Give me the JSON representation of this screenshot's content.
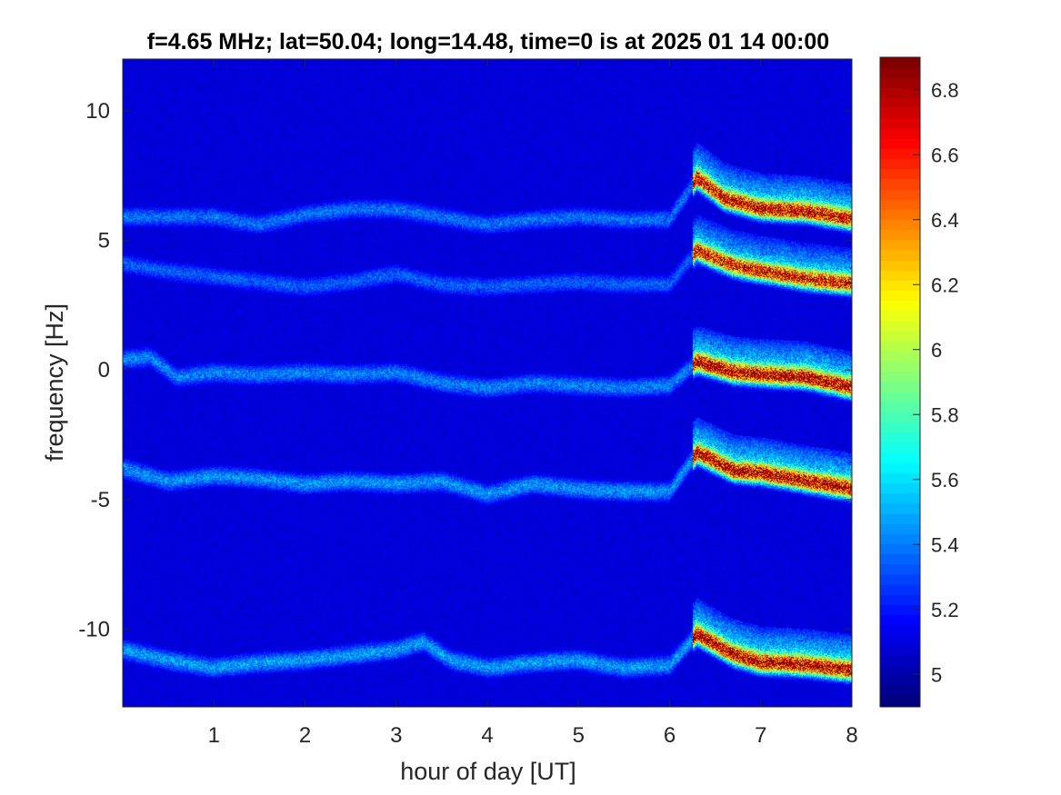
{
  "chart_data": {
    "type": "heatmap",
    "title": "f=4.65 MHz;  lat=50.04; long=14.48, time=0 is at 2025 01 14 00:00",
    "xlabel": "hour of day [UT]",
    "ylabel": "frequency [Hz]",
    "xlim": [
      0,
      8
    ],
    "ylim": [
      -13,
      12
    ],
    "x_ticks": [
      1,
      2,
      3,
      4,
      5,
      6,
      7,
      8
    ],
    "y_ticks": [
      -10,
      -5,
      0,
      5,
      10
    ],
    "y_tick_labels": [
      "-10",
      "-5",
      "0",
      "5",
      "10"
    ],
    "colorbar": {
      "colormap": "jet",
      "range": [
        4.9,
        6.9
      ],
      "ticks": [
        5,
        5.2,
        5.4,
        5.6,
        5.8,
        6,
        6.2,
        6.4,
        6.6,
        6.8
      ],
      "tick_labels": [
        "5",
        "5.2",
        "5.4",
        "5.6",
        "5.8",
        "6",
        "6.2",
        "6.4",
        "6.6",
        "6.8"
      ]
    },
    "background_color": "#00008f",
    "grid": false,
    "traces": [
      {
        "center": [
          [
            0.0,
            5.9
          ],
          [
            0.5,
            5.9
          ],
          [
            1.0,
            5.9
          ],
          [
            1.5,
            5.6
          ],
          [
            2.0,
            6.0
          ],
          [
            2.5,
            6.2
          ],
          [
            3.0,
            6.2
          ],
          [
            3.5,
            5.9
          ],
          [
            4.0,
            5.6
          ],
          [
            4.5,
            5.8
          ],
          [
            5.0,
            5.9
          ],
          [
            5.5,
            5.8
          ],
          [
            6.0,
            5.8
          ],
          [
            6.3,
            7.4
          ],
          [
            6.6,
            6.6
          ],
          [
            7.0,
            6.2
          ],
          [
            7.5,
            6.1
          ],
          [
            8.0,
            5.8
          ]
        ],
        "strength_before": 0.28,
        "strength_after": 0.92
      },
      {
        "center": [
          [
            0.0,
            4.1
          ],
          [
            0.5,
            3.8
          ],
          [
            1.0,
            3.6
          ],
          [
            1.5,
            3.4
          ],
          [
            2.0,
            3.2
          ],
          [
            2.5,
            3.4
          ],
          [
            3.0,
            3.7
          ],
          [
            3.5,
            3.3
          ],
          [
            4.0,
            3.2
          ],
          [
            4.5,
            3.3
          ],
          [
            5.0,
            3.4
          ],
          [
            5.5,
            3.3
          ],
          [
            6.0,
            3.3
          ],
          [
            6.3,
            4.6
          ],
          [
            6.7,
            4.0
          ],
          [
            7.0,
            3.8
          ],
          [
            7.5,
            3.5
          ],
          [
            8.0,
            3.3
          ]
        ],
        "strength_before": 0.26,
        "strength_after": 0.88
      },
      {
        "center": [
          [
            0.0,
            0.4
          ],
          [
            0.3,
            0.5
          ],
          [
            0.6,
            -0.3
          ],
          [
            1.0,
            -0.1
          ],
          [
            1.5,
            -0.2
          ],
          [
            2.0,
            -0.1
          ],
          [
            2.5,
            -0.2
          ],
          [
            3.0,
            -0.1
          ],
          [
            3.5,
            -0.5
          ],
          [
            4.0,
            -0.7
          ],
          [
            4.5,
            -0.5
          ],
          [
            5.0,
            -0.6
          ],
          [
            5.5,
            -0.7
          ],
          [
            6.0,
            -0.6
          ],
          [
            6.3,
            0.3
          ],
          [
            6.7,
            -0.1
          ],
          [
            7.0,
            -0.2
          ],
          [
            7.5,
            -0.3
          ],
          [
            8.0,
            -0.7
          ]
        ],
        "strength_before": 0.3,
        "strength_after": 0.95
      },
      {
        "center": [
          [
            0.0,
            -3.8
          ],
          [
            0.5,
            -4.3
          ],
          [
            1.0,
            -4.1
          ],
          [
            1.5,
            -4.2
          ],
          [
            2.0,
            -4.4
          ],
          [
            2.5,
            -4.3
          ],
          [
            3.0,
            -4.4
          ],
          [
            3.5,
            -4.3
          ],
          [
            4.0,
            -4.8
          ],
          [
            4.5,
            -4.4
          ],
          [
            5.0,
            -4.6
          ],
          [
            5.5,
            -4.7
          ],
          [
            6.0,
            -4.7
          ],
          [
            6.3,
            -3.2
          ],
          [
            6.7,
            -3.9
          ],
          [
            7.0,
            -4.0
          ],
          [
            7.5,
            -4.3
          ],
          [
            8.0,
            -4.6
          ]
        ],
        "strength_before": 0.32,
        "strength_after": 0.95
      },
      {
        "center": [
          [
            0.0,
            -10.8
          ],
          [
            0.5,
            -11.2
          ],
          [
            1.0,
            -11.5
          ],
          [
            1.5,
            -11.3
          ],
          [
            2.0,
            -11.2
          ],
          [
            2.5,
            -11.0
          ],
          [
            3.0,
            -10.8
          ],
          [
            3.3,
            -10.5
          ],
          [
            3.6,
            -11.2
          ],
          [
            4.0,
            -11.5
          ],
          [
            4.5,
            -11.3
          ],
          [
            5.0,
            -11.2
          ],
          [
            5.5,
            -11.5
          ],
          [
            6.0,
            -11.4
          ],
          [
            6.3,
            -10.2
          ],
          [
            6.7,
            -11.0
          ],
          [
            7.0,
            -11.3
          ],
          [
            7.5,
            -11.4
          ],
          [
            8.0,
            -11.6
          ]
        ],
        "strength_before": 0.33,
        "strength_after": 0.95
      }
    ]
  }
}
